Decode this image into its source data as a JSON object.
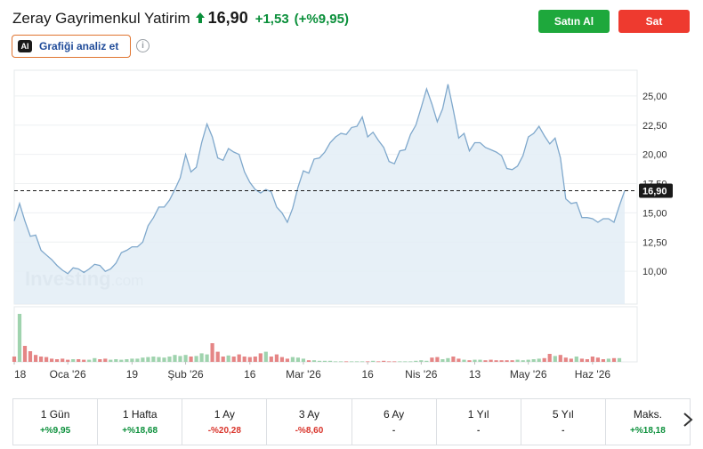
{
  "header": {
    "stock_name": "Zeray Gayrimenkul Yatirim",
    "price": "16,90",
    "change": "+1,53",
    "change_pct": "(+%9,95)",
    "ai_button_label": "Grafiği analiz et",
    "ai_icon_text": "AI",
    "info_icon_text": "i",
    "buy_label": "Satın Al",
    "sell_label": "Sat"
  },
  "colors": {
    "positive": "#0a8f3a",
    "negative": "#d9342b",
    "buy": "#1ea83c",
    "sell": "#ee3a2f",
    "line": "#7fa8cc",
    "area": "#e3edf6"
  },
  "chart_data": {
    "type": "area",
    "title": "",
    "xlabel": "",
    "ylabel": "",
    "ylim": [
      7.2,
      27.2
    ],
    "yticks": [
      "25,00",
      "22,50",
      "20,00",
      "17,50",
      "15,00",
      "12,50",
      "10,00"
    ],
    "ytick_values": [
      25,
      22.5,
      20,
      17.5,
      15,
      12.5,
      10
    ],
    "current_price_label": "16,90",
    "current_price": 16.9,
    "watermark": "Investing",
    "watermark_suffix": ".com",
    "xticks": [
      "18",
      "Oca '26",
      "19",
      "Şub '26",
      "16",
      "Mar '26",
      "16",
      "Nis '26",
      "13",
      "May '26",
      "Haz '26"
    ],
    "xtick_index": [
      0,
      10,
      22,
      32,
      44,
      54,
      66,
      76,
      86,
      96,
      108
    ],
    "series": [
      {
        "values": [
          14.3,
          15.8,
          14.3,
          13.0,
          13.1,
          11.8,
          11.4,
          11.0,
          10.5,
          10.1,
          9.8,
          10.3,
          10.2,
          9.9,
          10.2,
          10.6,
          10.5,
          10.0,
          10.2,
          10.7,
          11.6,
          11.8,
          12.1,
          12.1,
          12.5,
          13.9,
          14.6,
          15.5,
          15.5,
          16.1,
          17.0,
          18.0,
          20.0,
          18.5,
          18.9,
          21.0,
          22.6,
          21.5,
          19.7,
          19.5,
          20.5,
          20.2,
          20.0,
          18.5,
          17.6,
          17.0,
          16.7,
          17.0,
          16.8,
          15.5,
          15.0,
          14.2,
          15.4,
          17.2,
          18.6,
          18.4,
          19.6,
          19.7,
          20.2,
          21.0,
          21.5,
          21.8,
          21.7,
          22.3,
          22.4,
          23.2,
          21.5,
          21.9,
          21.2,
          20.6,
          19.4,
          19.2,
          20.3,
          20.4,
          21.7,
          22.5,
          24.0,
          25.6,
          24.3,
          22.8,
          23.9,
          26.0,
          23.8,
          21.4,
          21.8,
          20.3,
          21.0,
          21.0,
          20.6,
          20.4,
          20.2,
          19.9,
          18.8,
          18.7,
          19.0,
          19.9,
          21.5,
          21.8,
          22.4,
          21.6,
          20.9,
          21.4,
          19.7,
          16.2,
          15.8,
          15.9,
          14.6,
          14.6,
          14.5,
          14.2,
          14.5,
          14.5,
          14.2,
          15.6,
          16.9
        ]
      }
    ],
    "volume": [
      1,
      9,
      3,
      2,
      1.3,
      1,
      0.9,
      0.6,
      0.5,
      0.6,
      0.4,
      0.5,
      0.5,
      0.4,
      0.4,
      0.7,
      0.5,
      0.6,
      0.4,
      0.5,
      0.4,
      0.5,
      0.6,
      0.6,
      0.8,
      0.9,
      1.0,
      0.9,
      0.8,
      1.0,
      1.3,
      1.1,
      1.3,
      1.0,
      1.1,
      1.6,
      1.4,
      3.5,
      1.9,
      1.0,
      1.2,
      1.0,
      1.4,
      1.0,
      0.9,
      1.0,
      1.6,
      1.9,
      1.0,
      1.4,
      0.9,
      0.6,
      0.9,
      0.8,
      0.6,
      0.3,
      0.3,
      0.2,
      0.2,
      0.2,
      0.1,
      0.1,
      0.1,
      0.1,
      0.1,
      0.1,
      0.1,
      0.2,
      0.1,
      0.2,
      0.1,
      0.1,
      0.1,
      0.1,
      0.1,
      0.2,
      0.3,
      0.2,
      0.8,
      0.9,
      0.5,
      0.7,
      1.0,
      0.6,
      0.4,
      0.3,
      0.4,
      0.4,
      0.3,
      0.4,
      0.3,
      0.3,
      0.3,
      0.3,
      0.4,
      0.3,
      0.4,
      0.5,
      0.6,
      0.7,
      1.5,
      1.1,
      1.3,
      0.8,
      0.6,
      1.0,
      0.6,
      0.5,
      1.0,
      0.8,
      0.5,
      0.6,
      0.7,
      0.7
    ],
    "volume_up": [
      0,
      1,
      0,
      0,
      0,
      0,
      0,
      0,
      0,
      0,
      0,
      1,
      0,
      0,
      1,
      1,
      0,
      0,
      1,
      1,
      1,
      1,
      1,
      1,
      1,
      1,
      1,
      1,
      1,
      1,
      1,
      1,
      1,
      0,
      1,
      1,
      1,
      0,
      0,
      0,
      1,
      0,
      0,
      0,
      0,
      0,
      0,
      1,
      0,
      0,
      0,
      0,
      1,
      1,
      1,
      0,
      1,
      1,
      1,
      1,
      1,
      1,
      0,
      1,
      1,
      1,
      0,
      1,
      0,
      0,
      0,
      0,
      1,
      1,
      1,
      1,
      1,
      1,
      0,
      0,
      1,
      1,
      0,
      0,
      1,
      0,
      1,
      1,
      0,
      0,
      0,
      0,
      0,
      0,
      1,
      1,
      1,
      1,
      1,
      0,
      0,
      1,
      0,
      0,
      0,
      1,
      0,
      0,
      0,
      0,
      0,
      1,
      0,
      1,
      1
    ],
    "grid": true
  },
  "performance": [
    {
      "label": "1 Gün",
      "value": "+%9,95",
      "dir": "pos"
    },
    {
      "label": "1 Hafta",
      "value": "+%18,68",
      "dir": "pos"
    },
    {
      "label": "1 Ay",
      "value": "-%20,28",
      "dir": "neg"
    },
    {
      "label": "3 Ay",
      "value": "-%8,60",
      "dir": "neg"
    },
    {
      "label": "6 Ay",
      "value": "-",
      "dir": "neu"
    },
    {
      "label": "1 Yıl",
      "value": "-",
      "dir": "neu"
    },
    {
      "label": "5 Yıl",
      "value": "-",
      "dir": "neu"
    },
    {
      "label": "Maks.",
      "value": "+%18,18",
      "dir": "pos"
    }
  ]
}
